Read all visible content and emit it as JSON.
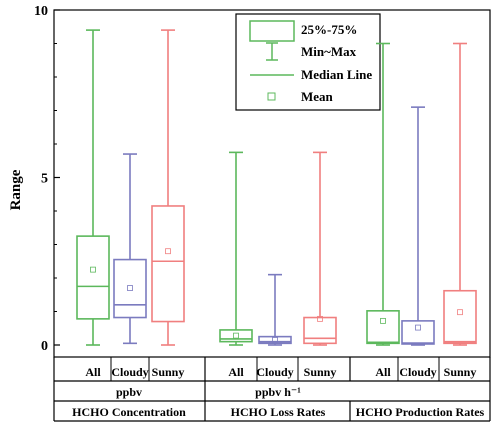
{
  "chart_data": {
    "type": "box",
    "ylabel": "Range",
    "ylim": [
      0,
      10
    ],
    "yticks": [
      "0",
      "5",
      "10"
    ],
    "legend": {
      "position": "top-right",
      "entries": [
        "25%-75%",
        "Min~Max",
        "Median Line",
        "Mean"
      ]
    },
    "groups": [
      {
        "name": "HCHO Concentration",
        "unit": "ppbv",
        "categories": [
          "All",
          "Cloudy",
          "Sunny"
        ]
      },
      {
        "name": "HCHO Loss Rates",
        "unit": "ppbv h⁻¹",
        "categories": [
          "All",
          "Cloudy",
          "Sunny"
        ]
      },
      {
        "name": "HCHO Production Rates",
        "unit": "",
        "categories": [
          "All",
          "Cloudy",
          "Sunny"
        ]
      }
    ],
    "boxes": [
      {
        "group": "HCHO Concentration",
        "category": "All",
        "min": 0.0,
        "q1": 0.78,
        "median": 1.75,
        "q3": 3.25,
        "max": 9.4,
        "mean": 2.25,
        "color": "#5cb85c"
      },
      {
        "group": "HCHO Concentration",
        "category": "Cloudy",
        "min": 0.05,
        "q1": 0.82,
        "median": 1.2,
        "q3": 2.55,
        "max": 5.7,
        "mean": 1.7,
        "color": "#7b7bbf"
      },
      {
        "group": "HCHO Concentration",
        "category": "Sunny",
        "min": 0.0,
        "q1": 0.7,
        "median": 2.5,
        "q3": 4.15,
        "max": 9.4,
        "mean": 2.8,
        "color": "#f07f7f"
      },
      {
        "group": "HCHO Loss Rates",
        "category": "All",
        "min": 0.0,
        "q1": 0.1,
        "median": 0.18,
        "q3": 0.45,
        "max": 5.75,
        "mean": 0.28,
        "color": "#5cb85c"
      },
      {
        "group": "HCHO Loss Rates",
        "category": "Cloudy",
        "min": 0.0,
        "q1": 0.05,
        "median": 0.1,
        "q3": 0.25,
        "max": 2.1,
        "mean": 0.15,
        "color": "#7b7bbf"
      },
      {
        "group": "HCHO Loss Rates",
        "category": "Sunny",
        "min": 0.0,
        "q1": 0.05,
        "median": 0.2,
        "q3": 0.82,
        "max": 5.75,
        "mean": 0.78,
        "color": "#f07f7f"
      },
      {
        "group": "HCHO Production Rates",
        "category": "All",
        "min": 0.0,
        "q1": 0.05,
        "median": 0.08,
        "q3": 1.02,
        "max": 9.0,
        "mean": 0.72,
        "color": "#5cb85c"
      },
      {
        "group": "HCHO Production Rates",
        "category": "Cloudy",
        "min": 0.0,
        "q1": 0.03,
        "median": 0.06,
        "q3": 0.72,
        "max": 7.1,
        "mean": 0.52,
        "color": "#7b7bbf"
      },
      {
        "group": "HCHO Production Rates",
        "category": "Sunny",
        "min": 0.0,
        "q1": 0.05,
        "median": 0.1,
        "q3": 1.62,
        "max": 9.0,
        "mean": 0.98,
        "color": "#f07f7f"
      }
    ],
    "legend_color": "#5cb85c"
  }
}
